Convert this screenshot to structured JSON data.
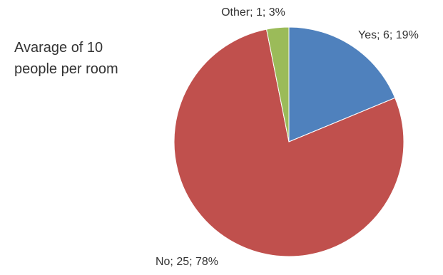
{
  "chart_data": {
    "type": "pie",
    "title": "",
    "annotation": "Avarage of 10\npeople per room",
    "start_angle_deg": 0,
    "direction": "clockwise",
    "legend": "none",
    "slices": [
      {
        "name": "Yes",
        "value": 6,
        "percent": 19,
        "label": "Yes; 6; 19%",
        "color": "#4F81BD"
      },
      {
        "name": "No",
        "value": 25,
        "percent": 78,
        "label": "No; 25; 78%",
        "color": "#C0504D"
      },
      {
        "name": "Other",
        "value": 1,
        "percent": 3,
        "label": "Other; 1; 3%",
        "color": "#9BBB59"
      }
    ]
  }
}
